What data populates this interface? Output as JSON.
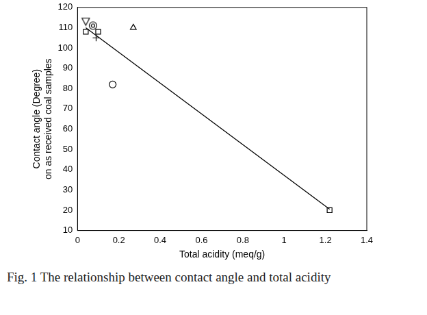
{
  "chart_data": {
    "type": "scatter",
    "caption": "Fig. 1  The relationship between contact angle and total acidity",
    "x_label": "Total acidity (meq/g)",
    "y_label": [
      "Contact angle (Degree)",
      "on as received coal samples"
    ],
    "xlim": [
      0,
      1.4
    ],
    "xticks": [
      0,
      0.2,
      0.4,
      0.6,
      0.8,
      1,
      1.2,
      1.4
    ],
    "ylim": [
      10,
      120
    ],
    "yticks": [
      10,
      20,
      30,
      40,
      50,
      60,
      70,
      80,
      90,
      100,
      110,
      120
    ],
    "grid": false,
    "series": [
      {
        "type": "scatter",
        "marker": "triangle-down",
        "color": "#000000",
        "x": [
          0.04
        ],
        "values": [
          113
        ]
      },
      {
        "type": "scatter",
        "marker": "square",
        "color": "#000000",
        "x": [
          0.04,
          0.1,
          1.22
        ],
        "values": [
          108,
          108,
          20
        ]
      },
      {
        "type": "scatter",
        "marker": "circle-dot",
        "color": "#000000",
        "x": [
          0.075
        ],
        "values": [
          111
        ]
      },
      {
        "type": "scatter",
        "marker": "plus",
        "color": "#000000",
        "x": [
          0.09
        ],
        "values": [
          105
        ]
      },
      {
        "type": "scatter",
        "marker": "triangle",
        "color": "#000000",
        "x": [
          0.27
        ],
        "values": [
          110
        ]
      },
      {
        "type": "scatter",
        "marker": "circle",
        "color": "#000000",
        "x": [
          0.17
        ],
        "values": [
          82
        ]
      },
      {
        "type": "line",
        "marker": "none",
        "line_style": "solid",
        "color": "#000000",
        "x": [
          0.04,
          1.22
        ],
        "values": [
          110,
          20.5
        ]
      }
    ]
  }
}
